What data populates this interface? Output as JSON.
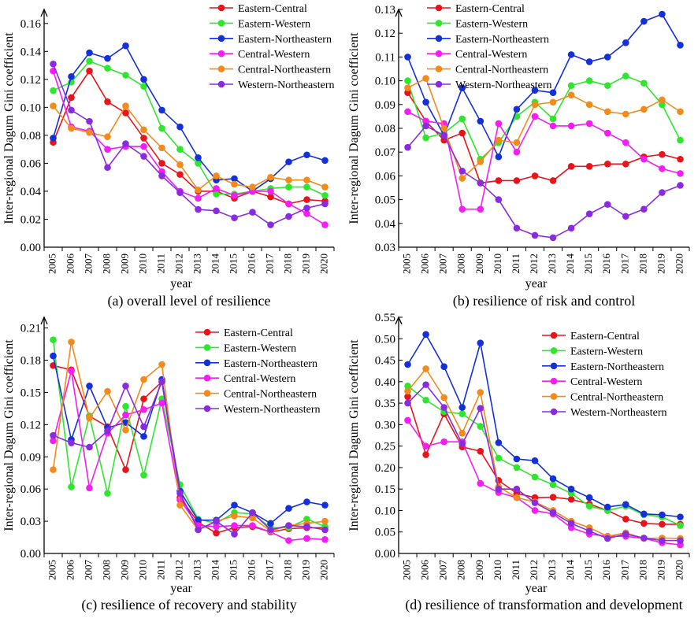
{
  "figure": {
    "series_colors": {
      "Eastern-Central": "#e8141b",
      "Eastern-Western": "#2ee62e",
      "Eastern-Northeastern": "#1530d9",
      "Central-Western": "#f51cf5",
      "Central-Northeastern": "#f28a1c",
      "Western-Northeastern": "#8a2be2"
    }
  },
  "chart_data": [
    {
      "type": "line",
      "caption": "(a) overall level of resilience",
      "xlabel": "year",
      "ylabel": "Inter-regional Dagum Gini coefficient",
      "categories": [
        "2005",
        "2006",
        "2007",
        "2008",
        "2009",
        "2010",
        "2011",
        "2012",
        "2013",
        "2014",
        "2015",
        "2016",
        "2017",
        "2018",
        "2019",
        "2020"
      ],
      "ylim": [
        0,
        0.17
      ],
      "yticks": [
        0.0,
        0.02,
        0.04,
        0.06,
        0.08,
        0.1,
        0.12,
        0.14,
        0.16
      ],
      "ytick_labels": [
        "0.00",
        "0.02",
        "0.04",
        "0.06",
        "0.08",
        "0.10",
        "0.12",
        "0.14",
        "0.16"
      ],
      "legend_position": "top-right",
      "series": [
        {
          "name": "Eastern-Central",
          "values": [
            0.075,
            0.107,
            0.126,
            0.104,
            0.096,
            0.078,
            0.06,
            0.052,
            0.04,
            0.04,
            0.035,
            0.04,
            0.036,
            0.031,
            0.034,
            0.033
          ]
        },
        {
          "name": "Eastern-Western",
          "values": [
            0.112,
            0.118,
            0.133,
            0.128,
            0.123,
            0.115,
            0.085,
            0.07,
            0.06,
            0.038,
            0.038,
            0.04,
            0.042,
            0.043,
            0.043,
            0.037
          ]
        },
        {
          "name": "Eastern-Northeastern",
          "values": [
            0.078,
            0.122,
            0.139,
            0.135,
            0.144,
            0.12,
            0.098,
            0.086,
            0.064,
            0.048,
            0.049,
            0.04,
            0.049,
            0.061,
            0.066,
            0.062
          ]
        },
        {
          "name": "Central-Western",
          "values": [
            0.126,
            0.086,
            0.083,
            0.07,
            0.072,
            0.072,
            0.054,
            0.04,
            0.035,
            0.042,
            0.037,
            0.04,
            0.04,
            0.031,
            0.024,
            0.016
          ]
        },
        {
          "name": "Central-Northeastern",
          "values": [
            0.101,
            0.085,
            0.082,
            0.079,
            0.101,
            0.084,
            0.071,
            0.059,
            0.041,
            0.051,
            0.045,
            0.043,
            0.05,
            0.048,
            0.048,
            0.043
          ]
        },
        {
          "name": "Western-Northeastern",
          "values": [
            0.131,
            0.098,
            0.09,
            0.057,
            0.074,
            0.065,
            0.051,
            0.039,
            0.027,
            0.026,
            0.021,
            0.025,
            0.016,
            0.022,
            0.028,
            0.031
          ]
        }
      ]
    },
    {
      "type": "line",
      "caption": "(b) resilience of risk and control",
      "xlabel": "year",
      "ylabel": "Inter-regional Dagum Gini coefficient",
      "categories": [
        "2005",
        "2006",
        "2007",
        "2008",
        "2009",
        "2010",
        "2011",
        "2012",
        "2013",
        "2014",
        "2015",
        "2016",
        "2017",
        "2018",
        "2019",
        "2020"
      ],
      "ylim": [
        0.03,
        0.13
      ],
      "yticks": [
        0.03,
        0.04,
        0.05,
        0.06,
        0.07,
        0.08,
        0.09,
        0.1,
        0.11,
        0.12,
        0.13
      ],
      "ytick_labels": [
        "0.03",
        "0.04",
        "0.05",
        "0.06",
        "0.07",
        "0.08",
        "0.09",
        "0.10",
        "0.11",
        "0.12",
        "0.13"
      ],
      "legend_position": "top-center",
      "series": [
        {
          "name": "Eastern-Central",
          "values": [
            0.095,
            0.083,
            0.075,
            0.078,
            0.057,
            0.058,
            0.058,
            0.06,
            0.058,
            0.064,
            0.064,
            0.065,
            0.065,
            0.068,
            0.069,
            0.067
          ]
        },
        {
          "name": "Eastern-Western",
          "values": [
            0.1,
            0.076,
            0.078,
            0.084,
            0.067,
            0.074,
            0.085,
            0.091,
            0.084,
            0.098,
            0.1,
            0.098,
            0.102,
            0.099,
            0.09,
            0.075
          ]
        },
        {
          "name": "Eastern-Northeastern",
          "values": [
            0.11,
            0.091,
            0.077,
            0.097,
            0.083,
            0.068,
            0.088,
            0.096,
            0.095,
            0.111,
            0.108,
            0.11,
            0.116,
            0.125,
            0.128,
            0.115
          ]
        },
        {
          "name": "Central-Western",
          "values": [
            0.087,
            0.083,
            0.082,
            0.046,
            0.046,
            0.082,
            0.07,
            0.085,
            0.081,
            0.081,
            0.082,
            0.078,
            0.074,
            0.067,
            0.063,
            0.061
          ]
        },
        {
          "name": "Central-Northeastern",
          "values": [
            0.097,
            0.101,
            0.08,
            0.059,
            0.066,
            0.075,
            0.074,
            0.09,
            0.091,
            0.094,
            0.09,
            0.087,
            0.086,
            0.088,
            0.092,
            0.087
          ]
        },
        {
          "name": "Western-Northeastern",
          "values": [
            0.072,
            0.081,
            0.077,
            0.062,
            0.057,
            0.05,
            0.038,
            0.035,
            0.034,
            0.038,
            0.044,
            0.048,
            0.043,
            0.046,
            0.053,
            0.056
          ]
        }
      ]
    },
    {
      "type": "line",
      "caption": "(c) resilience of recovery and stability",
      "xlabel": "year",
      "ylabel": "Inter-regional Dagum Gini coefficient",
      "categories": [
        "2005",
        "2006",
        "2007",
        "2008",
        "2009",
        "2010",
        "2011",
        "2012",
        "2013",
        "2014",
        "2015",
        "2016",
        "2017",
        "2018",
        "2019",
        "2020"
      ],
      "ylim": [
        0,
        0.22
      ],
      "yticks": [
        0.0,
        0.03,
        0.06,
        0.09,
        0.12,
        0.15,
        0.18,
        0.21
      ],
      "ytick_labels": [
        "0.00",
        "0.03",
        "0.06",
        "0.09",
        "0.12",
        "0.15",
        "0.18",
        "0.21"
      ],
      "legend_position": "top-right",
      "series": [
        {
          "name": "Eastern-Central",
          "values": [
            0.175,
            0.171,
            0.128,
            0.118,
            0.078,
            0.144,
            0.16,
            0.052,
            0.029,
            0.019,
            0.024,
            0.025,
            0.02,
            0.023,
            0.024,
            0.024
          ]
        },
        {
          "name": "Eastern-Western",
          "values": [
            0.199,
            0.062,
            0.128,
            0.056,
            0.137,
            0.073,
            0.144,
            0.064,
            0.032,
            0.028,
            0.038,
            0.037,
            0.024,
            0.024,
            0.032,
            0.025
          ]
        },
        {
          "name": "Eastern-Northeastern",
          "values": [
            0.184,
            0.106,
            0.156,
            0.117,
            0.122,
            0.109,
            0.162,
            0.058,
            0.031,
            0.031,
            0.045,
            0.038,
            0.028,
            0.042,
            0.048,
            0.045
          ]
        },
        {
          "name": "Central-Western",
          "values": [
            0.105,
            0.17,
            0.061,
            0.112,
            0.129,
            0.134,
            0.14,
            0.05,
            0.026,
            0.025,
            0.026,
            0.026,
            0.02,
            0.012,
            0.014,
            0.013
          ]
        },
        {
          "name": "Central-Northeastern",
          "values": [
            0.078,
            0.197,
            0.126,
            0.151,
            0.115,
            0.162,
            0.176,
            0.045,
            0.022,
            0.03,
            0.035,
            0.033,
            0.021,
            0.026,
            0.028,
            0.03
          ]
        },
        {
          "name": "Western-Northeastern",
          "values": [
            0.11,
            0.103,
            0.099,
            0.114,
            0.156,
            0.118,
            0.16,
            0.056,
            0.022,
            0.03,
            0.018,
            0.038,
            0.022,
            0.026,
            0.025,
            0.022
          ]
        }
      ]
    },
    {
      "type": "line",
      "caption": "(d) resilience of transformation and development",
      "xlabel": "year",
      "ylabel": "Inter-regional Dagum Gini coefficient",
      "categories": [
        "2005",
        "2006",
        "2007",
        "2008",
        "2009",
        "2010",
        "2011",
        "2012",
        "2013",
        "2014",
        "2015",
        "2016",
        "2017",
        "2018",
        "2019",
        "2020"
      ],
      "ylim": [
        0,
        0.55
      ],
      "yticks": [
        0.0,
        0.05,
        0.1,
        0.15,
        0.2,
        0.25,
        0.3,
        0.35,
        0.4,
        0.45,
        0.5,
        0.55
      ],
      "ytick_labels": [
        "0.00",
        "0.05",
        "0.10",
        "0.15",
        "0.20",
        "0.25",
        "0.30",
        "0.35",
        "0.40",
        "0.45",
        "0.50",
        "0.55"
      ],
      "legend_position": "top-right",
      "series": [
        {
          "name": "Eastern-Central",
          "values": [
            0.365,
            0.23,
            0.325,
            0.248,
            0.238,
            0.17,
            0.14,
            0.13,
            0.131,
            0.126,
            0.115,
            0.1,
            0.08,
            0.07,
            0.068,
            0.068
          ]
        },
        {
          "name": "Eastern-Western",
          "values": [
            0.39,
            0.357,
            0.33,
            0.325,
            0.296,
            0.222,
            0.2,
            0.178,
            0.16,
            0.14,
            0.11,
            0.1,
            0.11,
            0.09,
            0.085,
            0.065
          ]
        },
        {
          "name": "Eastern-Northeastern",
          "values": [
            0.44,
            0.51,
            0.435,
            0.34,
            0.49,
            0.258,
            0.22,
            0.216,
            0.174,
            0.15,
            0.13,
            0.108,
            0.114,
            0.092,
            0.09,
            0.085
          ]
        },
        {
          "name": "Central-Western",
          "values": [
            0.31,
            0.25,
            0.26,
            0.26,
            0.163,
            0.142,
            0.13,
            0.1,
            0.092,
            0.06,
            0.045,
            0.04,
            0.04,
            0.035,
            0.025,
            0.02
          ]
        },
        {
          "name": "Central-Northeastern",
          "values": [
            0.378,
            0.43,
            0.363,
            0.28,
            0.375,
            0.155,
            0.13,
            0.12,
            0.1,
            0.075,
            0.06,
            0.04,
            0.048,
            0.035,
            0.036,
            0.035
          ]
        },
        {
          "name": "Western-Northeastern",
          "values": [
            0.35,
            0.393,
            0.34,
            0.255,
            0.338,
            0.15,
            0.15,
            0.118,
            0.095,
            0.07,
            0.052,
            0.035,
            0.045,
            0.036,
            0.03,
            0.03
          ]
        }
      ]
    }
  ]
}
